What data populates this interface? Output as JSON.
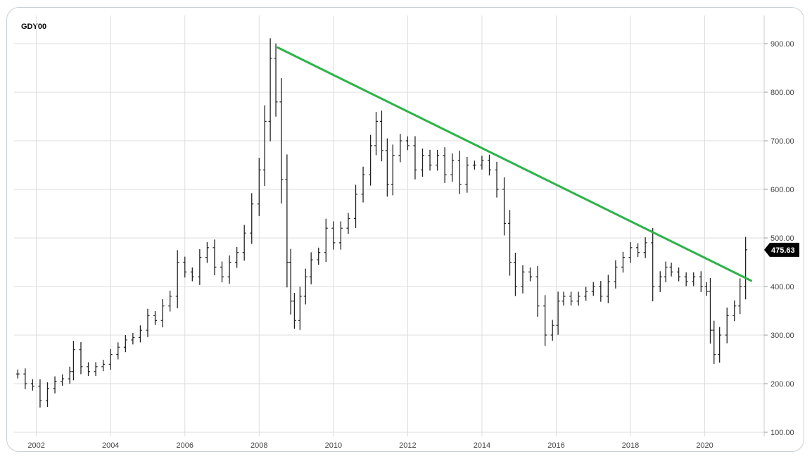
{
  "symbol": "GDY00",
  "chart_data": {
    "type": "line",
    "style": "ohlc-bars-monthly",
    "title": "GDY00",
    "xlabel": "",
    "ylabel": "",
    "grid": true,
    "x_ticks": [
      "2002",
      "2004",
      "2006",
      "2008",
      "2010",
      "2012",
      "2014",
      "2016",
      "2018",
      "2020"
    ],
    "y_ticks": [
      "100.00",
      "200.00",
      "300.00",
      "400.00",
      "500.00",
      "600.00",
      "700.00",
      "800.00",
      "900.00"
    ],
    "ylim": [
      100,
      920
    ],
    "xlim": [
      2001.4,
      2021.6
    ],
    "last_value_label": "475.63",
    "colors": {
      "trendline": "#2db34a",
      "bars": "#222222",
      "grid": "#dddddd",
      "last_value_bg": "#000000"
    },
    "series": [
      {
        "x": [
          2001.5,
          2001.7,
          2001.9,
          2002.1,
          2002.3,
          2002.5,
          2002.7,
          2002.9,
          2003.0,
          2003.2,
          2003.4,
          2003.6,
          2003.8,
          2004.0,
          2004.2,
          2004.4,
          2004.6,
          2004.8,
          2005.0,
          2005.2,
          2005.4,
          2005.6,
          2005.8,
          2006.0,
          2006.2,
          2006.4,
          2006.6,
          2006.8,
          2007.0,
          2007.2,
          2007.4,
          2007.6,
          2007.8,
          2008.0,
          2008.15,
          2008.3,
          2008.45,
          2008.6,
          2008.75,
          2008.85,
          2008.95,
          2009.1,
          2009.25,
          2009.4,
          2009.6,
          2009.8,
          2010.0,
          2010.2,
          2010.4,
          2010.6,
          2010.8,
          2011.0,
          2011.15,
          2011.3,
          2011.45,
          2011.6,
          2011.8,
          2012.0,
          2012.2,
          2012.4,
          2012.6,
          2012.8,
          2013.0,
          2013.2,
          2013.4,
          2013.6,
          2013.8,
          2014.0,
          2014.2,
          2014.4,
          2014.6,
          2014.75,
          2014.9,
          2015.1,
          2015.3,
          2015.5,
          2015.7,
          2015.9,
          2016.05,
          2016.2,
          2016.4,
          2016.6,
          2016.8,
          2017.0,
          2017.2,
          2017.4,
          2017.6,
          2017.8,
          2018.0,
          2018.2,
          2018.4,
          2018.6,
          2018.8,
          2018.95,
          2019.1,
          2019.3,
          2019.5,
          2019.7,
          2019.9,
          2020.05,
          2020.15,
          2020.25,
          2020.4,
          2020.6,
          2020.8,
          2020.95,
          2021.1
        ],
        "y": [
          220,
          200,
          195,
          165,
          190,
          205,
          210,
          225,
          270,
          235,
          225,
          235,
          240,
          260,
          275,
          290,
          295,
          310,
          340,
          330,
          360,
          380,
          450,
          430,
          420,
          460,
          480,
          440,
          420,
          450,
          470,
          510,
          570,
          640,
          740,
          870,
          780,
          620,
          450,
          370,
          330,
          380,
          420,
          455,
          470,
          520,
          490,
          520,
          540,
          590,
          630,
          690,
          740,
          680,
          610,
          670,
          700,
          690,
          640,
          670,
          650,
          670,
          630,
          660,
          610,
          650,
          650,
          660,
          640,
          600,
          530,
          450,
          400,
          430,
          420,
          360,
          300,
          320,
          370,
          380,
          370,
          380,
          390,
          400,
          380,
          410,
          440,
          460,
          480,
          470,
          490,
          400,
          420,
          440,
          430,
          420,
          410,
          420,
          400,
          390,
          310,
          260,
          300,
          340,
          360,
          400,
          475.63
        ]
      }
    ],
    "annotations": [
      {
        "type": "trendline",
        "from": {
          "x": 2008.5,
          "y": 892
        },
        "to": {
          "x": 2021.25,
          "y": 412
        }
      }
    ]
  }
}
